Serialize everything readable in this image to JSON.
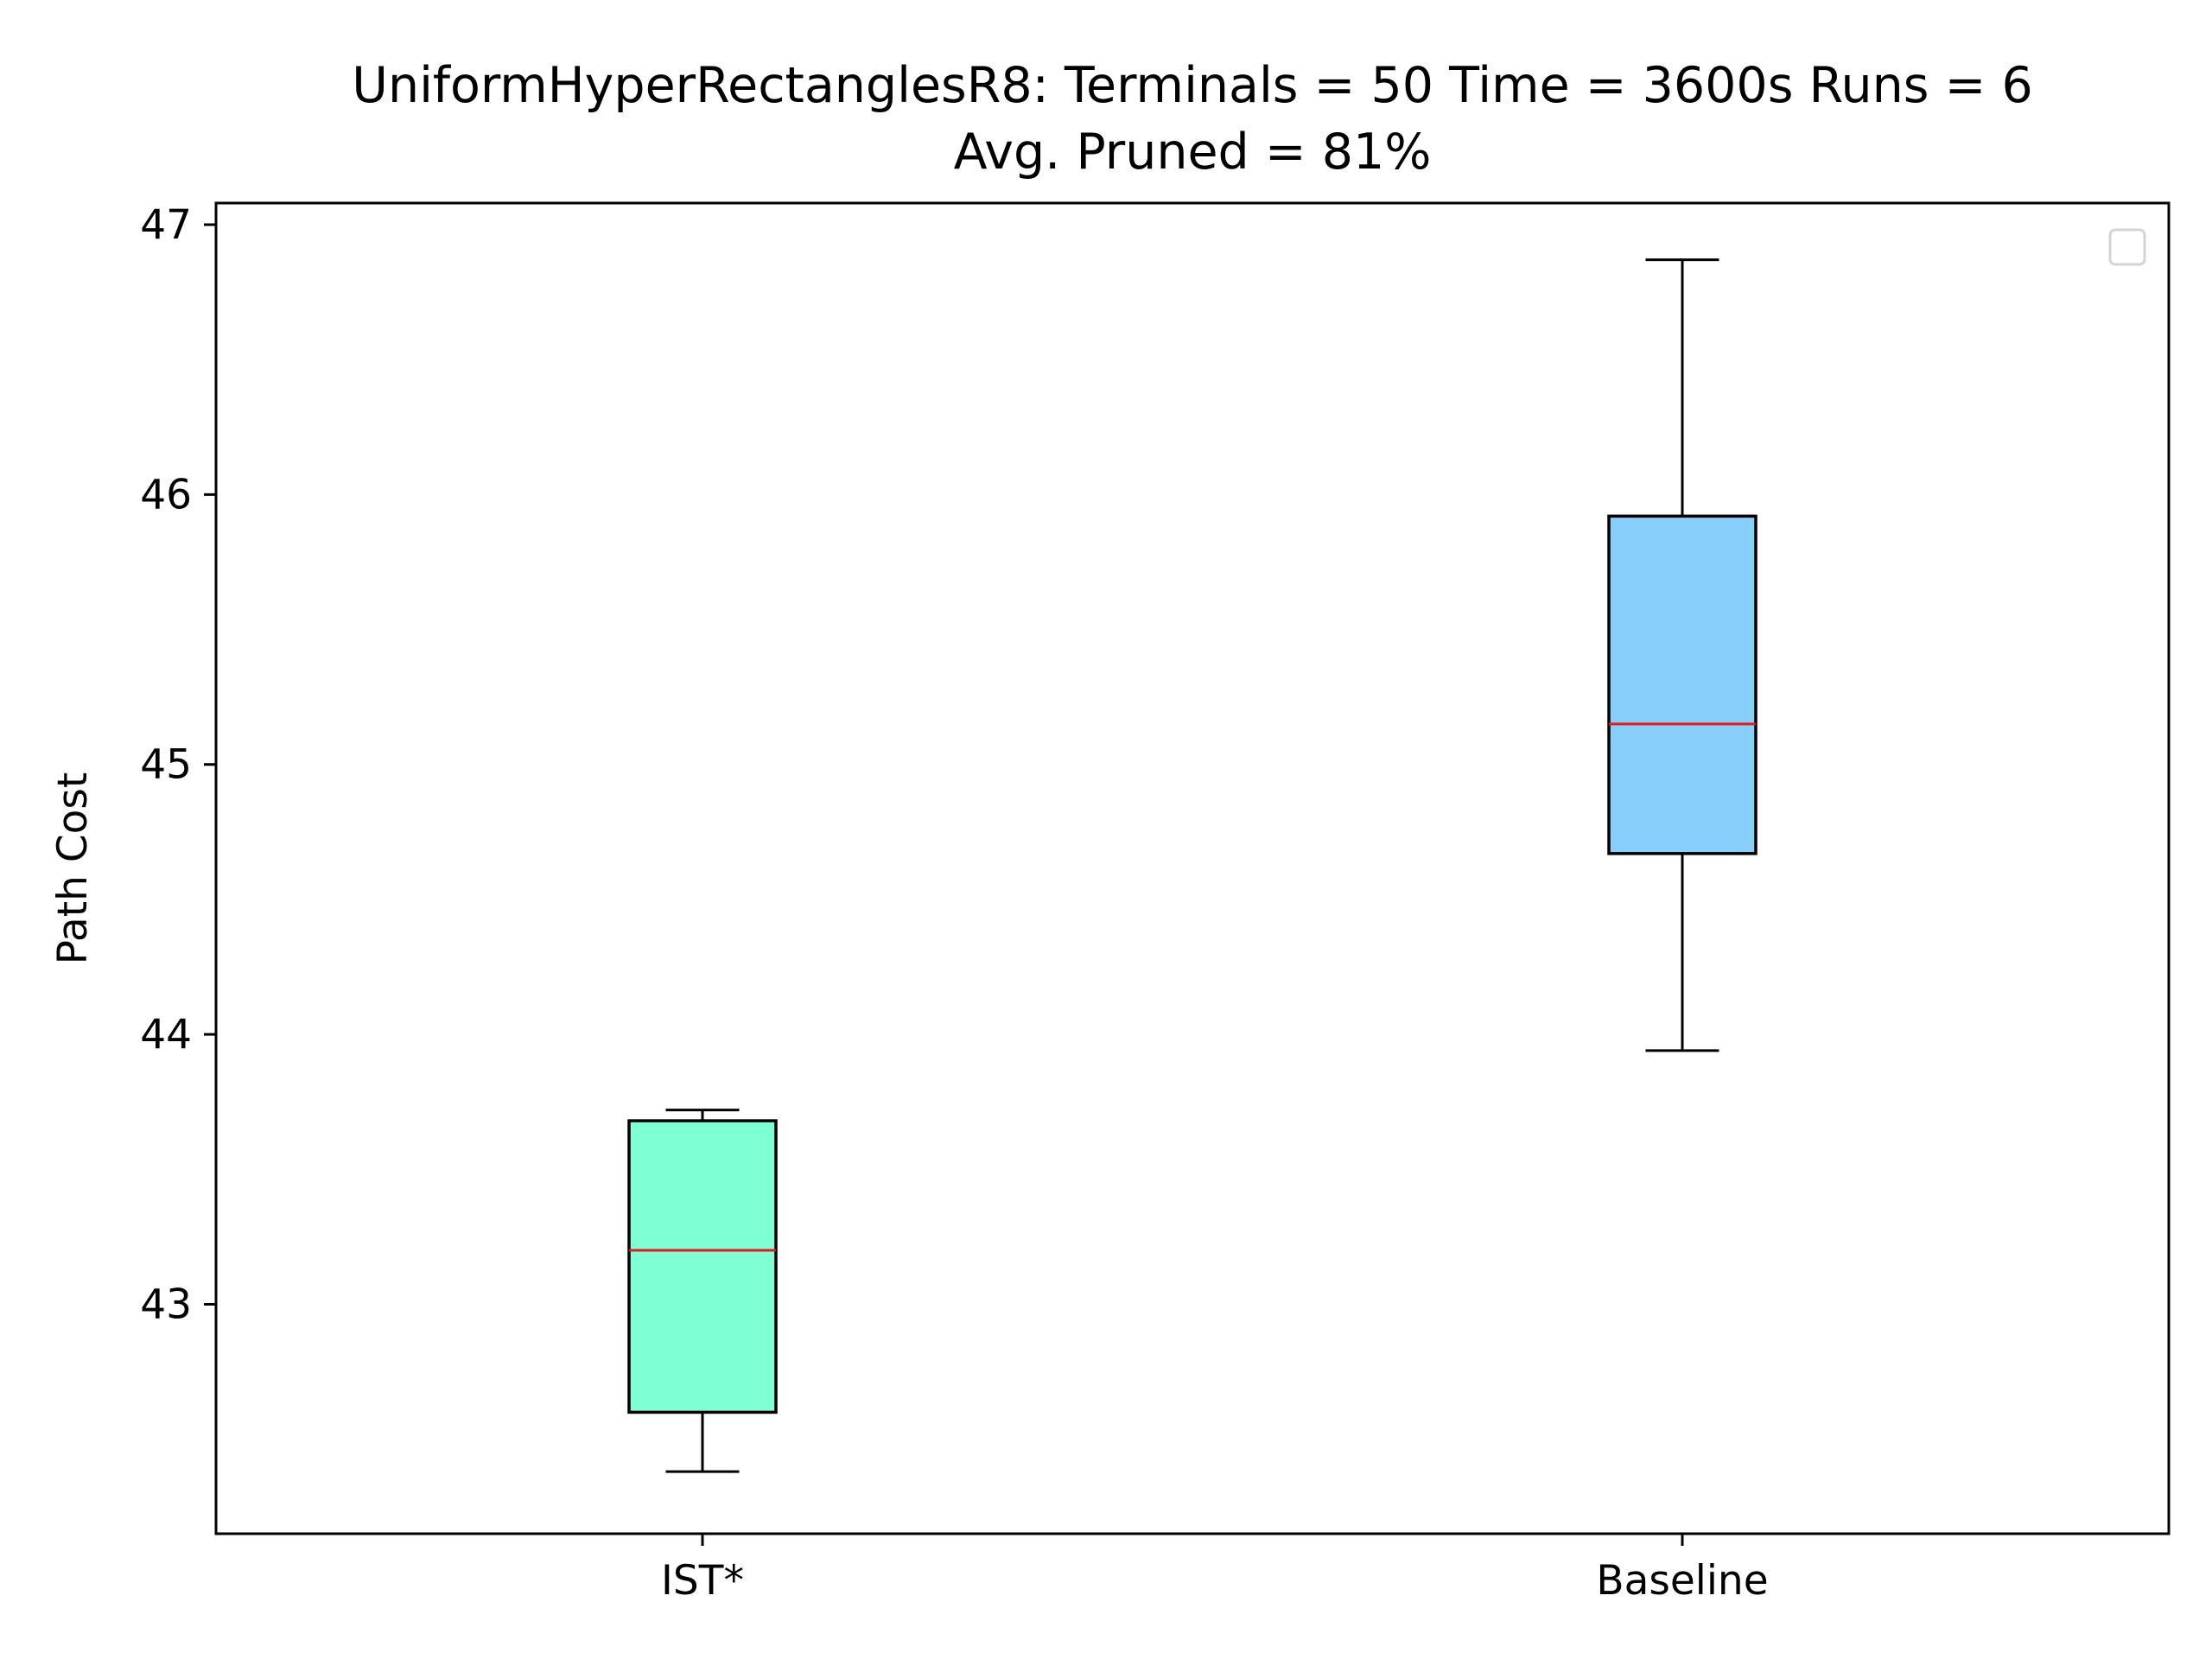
{
  "chart_data": {
    "type": "box",
    "title": "UniformHyperRectanglesR8:  Terminals = 50  Time = 3600s  Runs = 6",
    "subtitle": "Avg. Pruned = 81%",
    "xlabel": "",
    "ylabel": "Path Cost",
    "ylim": [
      42.15,
      47.08
    ],
    "yticks": [
      43,
      44,
      45,
      46,
      47
    ],
    "grid": false,
    "legend": {
      "placement": "top-right",
      "entries": []
    },
    "categories": [
      "IST*",
      "Baseline"
    ],
    "boxes": [
      {
        "category": "IST*",
        "whisker_low": 42.38,
        "q1": 42.6,
        "median": 43.2,
        "q3": 43.68,
        "whisker_high": 43.72,
        "color": "#7fffd4"
      },
      {
        "category": "Baseline",
        "whisker_low": 43.94,
        "q1": 44.67,
        "median": 45.15,
        "q3": 45.92,
        "whisker_high": 46.87,
        "color": "#87cefa"
      }
    ],
    "median_color": "#e41a1c"
  }
}
